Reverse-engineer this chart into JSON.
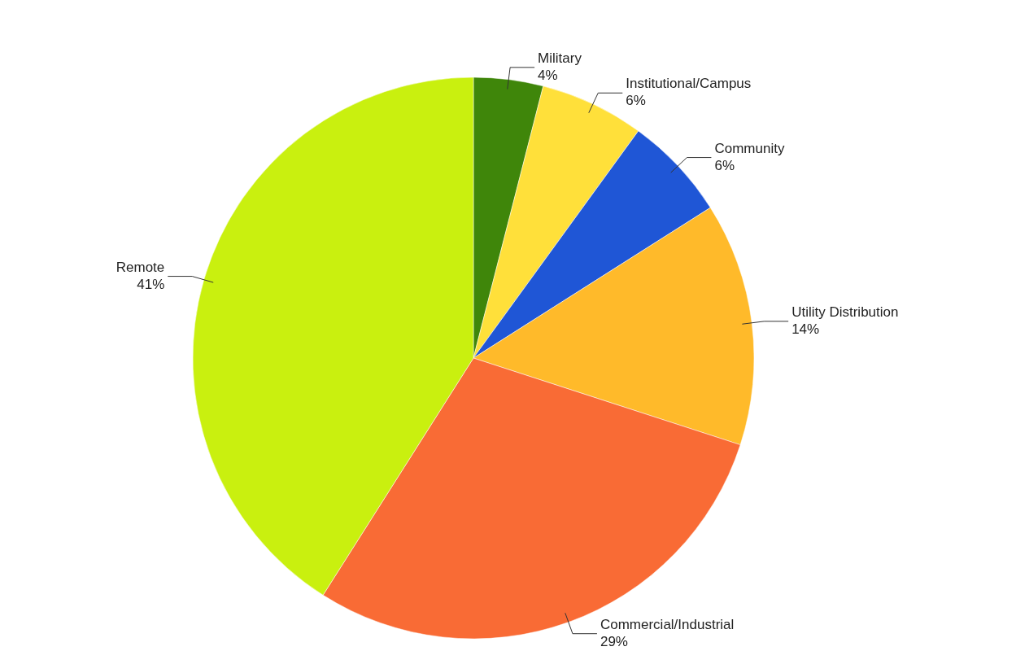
{
  "chart_data": {
    "type": "pie",
    "categories": [
      "Military",
      "Institutional/Campus",
      "Community",
      "Utility Distribution",
      "Commercial/Industrial",
      "Remote"
    ],
    "values": [
      4,
      6,
      6,
      14,
      29,
      41
    ],
    "value_labels": [
      "4%",
      "6%",
      "6%",
      "14%",
      "29%",
      "41%"
    ],
    "colors": [
      "#3f860a",
      "#ffe03a",
      "#1f56d6",
      "#ffba2a",
      "#f96b35",
      "#c9f00f"
    ]
  }
}
